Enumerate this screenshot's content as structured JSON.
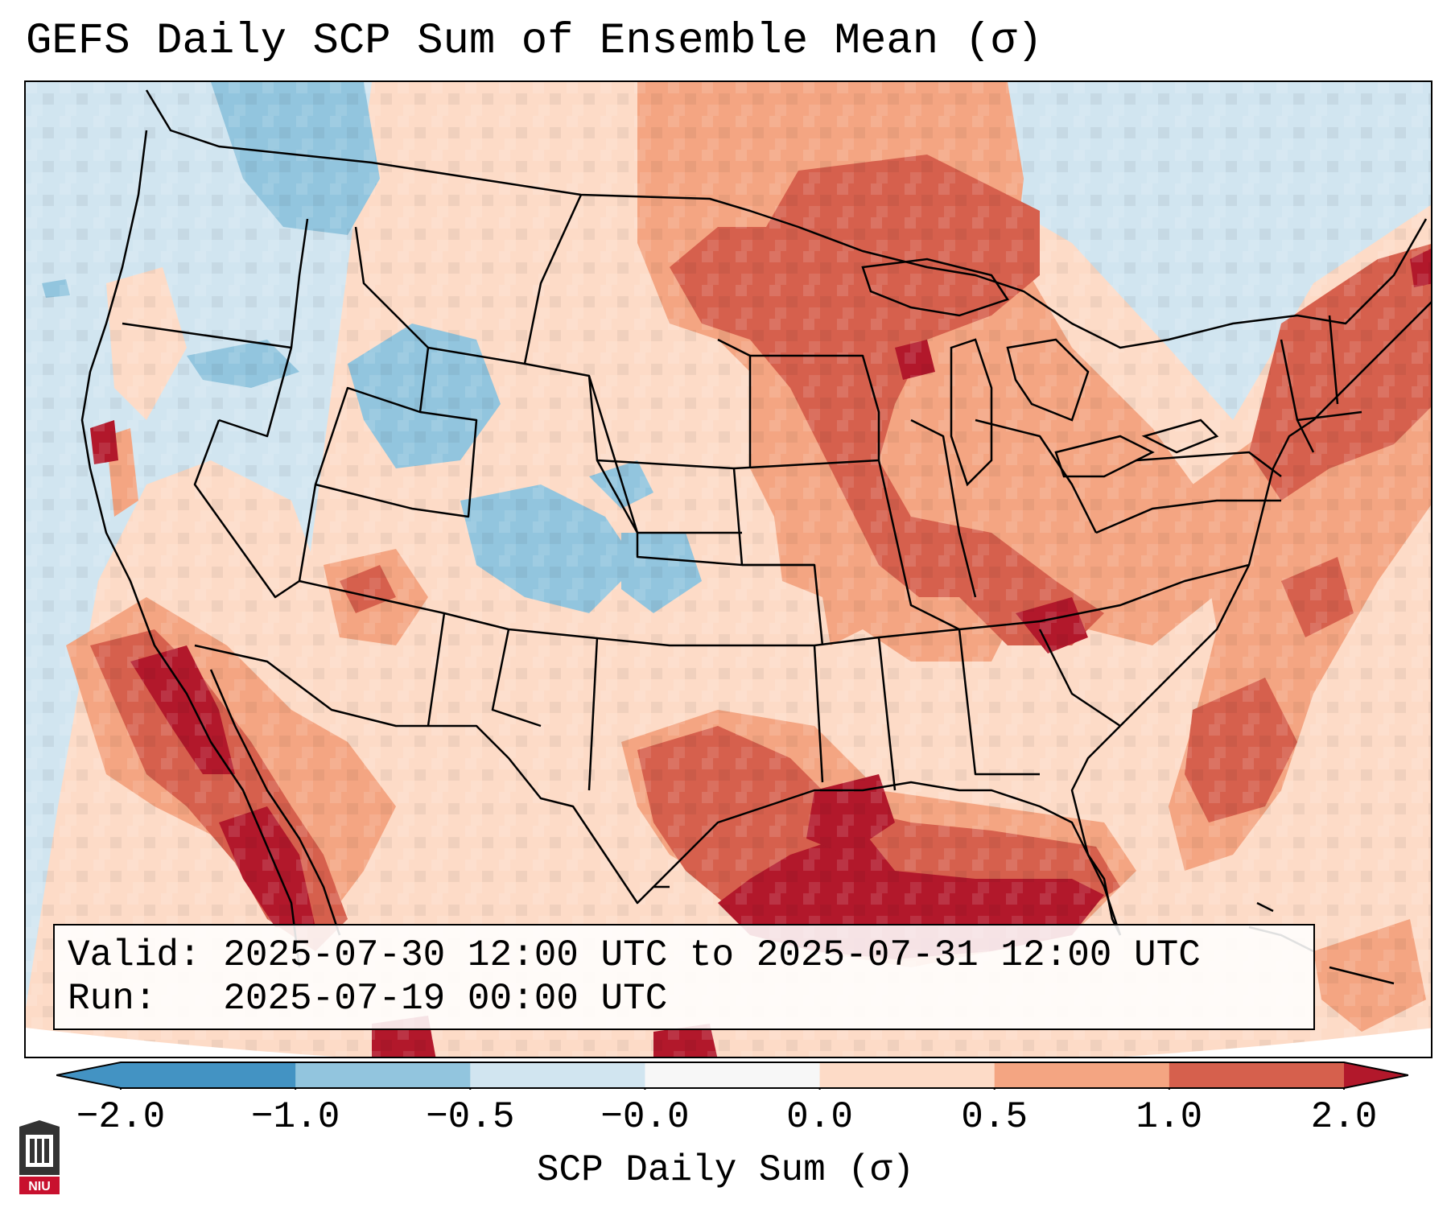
{
  "title": "GEFS Daily SCP Sum of Ensemble Mean (σ)",
  "info": {
    "valid_line": "Valid: 2025-07-30 12:00 UTC to 2025-07-31 12:00 UTC",
    "run_line": "Run:   2025-07-19 00:00 UTC"
  },
  "colorbar": {
    "title": "SCP Daily Sum (σ)",
    "ticks": [
      "−2.0",
      "−1.0",
      "−0.5",
      "−0.0",
      "0.0",
      "0.5",
      "1.0",
      "2.0"
    ],
    "colors": [
      "#4393c3",
      "#92c5de",
      "#d1e5f0",
      "#f7f7f7",
      "#fddbc7",
      "#f4a582",
      "#d6604d",
      "#b2182b"
    ],
    "extend": "both"
  },
  "logo": {
    "text": "NIU"
  },
  "map": {
    "region": "Contiguous United States",
    "field": "SCP daily sum anomaly",
    "colors": {
      "ocean_background": "#d1e5f0",
      "neutral": "#f7f7f7",
      "slight_positive": "#fddbc7",
      "moderate_positive": "#f4a582",
      "strong_positive": "#d6604d",
      "very_strong_positive": "#b2182b",
      "slight_negative": "#d1e5f0",
      "moderate_negative": "#92c5de",
      "border": "#000000"
    }
  }
}
